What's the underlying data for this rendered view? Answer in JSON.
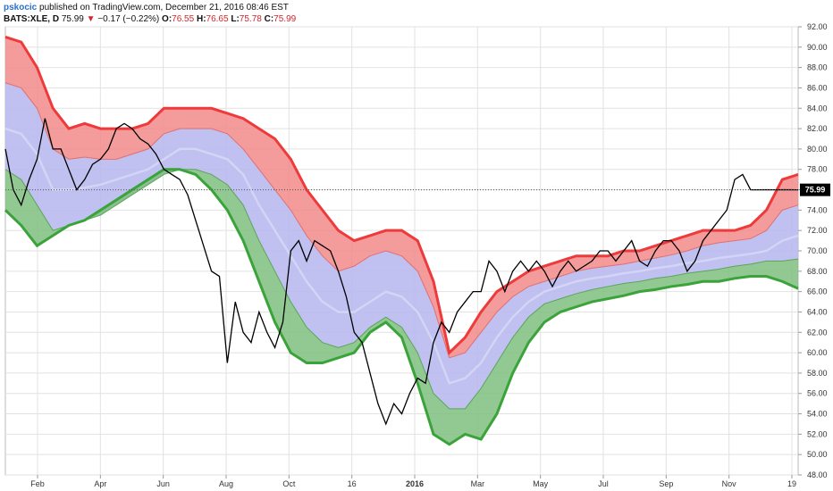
{
  "header": {
    "user": "pskocic",
    "published": "published on TradingView.com, December 21, 2016 08:46 EST",
    "line2_symbol": "BATS:XLE, D",
    "line2_price": "75.99",
    "line2_change": "−0.17 (−0.22%)",
    "o_label": "O:",
    "o_value": "76.55",
    "h_label": "H:",
    "h_value": "76.65",
    "l_label": "L:",
    "l_value": "75.78",
    "c_label": "C:",
    "c_value": "75.99"
  },
  "colors": {
    "price": "#000000",
    "upper_band": "#ee3a3a",
    "upper_fill": "#f28a8a",
    "middle_fill": "#b9b9f0",
    "lower_fill": "#7fbf7f",
    "lower_band": "#3aa33a",
    "last_price_bg": "#000000"
  },
  "chart_data": {
    "type": "line",
    "title": "",
    "ylim": [
      48,
      92
    ],
    "y_ticks": [
      "48.00",
      "50.00",
      "52.00",
      "54.00",
      "56.00",
      "58.00",
      "60.00",
      "62.00",
      "64.00",
      "66.00",
      "68.00",
      "70.00",
      "72.00",
      "74.00",
      "76.00",
      "78.00",
      "80.00",
      "82.00",
      "84.00",
      "86.00",
      "88.00",
      "90.00",
      "92.00"
    ],
    "x_ticks": [
      {
        "label": "Feb",
        "bold": false
      },
      {
        "label": "Apr",
        "bold": false
      },
      {
        "label": "Jun",
        "bold": false
      },
      {
        "label": "Aug",
        "bold": false
      },
      {
        "label": "Oct",
        "bold": false
      },
      {
        "label": "16",
        "bold": false
      },
      {
        "label": "2016",
        "bold": true
      },
      {
        "label": "Mar",
        "bold": false
      },
      {
        "label": "May",
        "bold": false
      },
      {
        "label": "Jul",
        "bold": false
      },
      {
        "label": "Sep",
        "bold": false
      },
      {
        "label": "Nov",
        "bold": false
      },
      {
        "label": "19",
        "bold": false
      }
    ],
    "x_index_range": [
      0,
      100
    ],
    "last_price_label": "75.99",
    "last_price": 75.99,
    "series": [
      {
        "key": "upper",
        "x": [
          0,
          2,
          4,
          6,
          8,
          10,
          12,
          14,
          16,
          18,
          20,
          22,
          24,
          26,
          28,
          30,
          32,
          34,
          36,
          38,
          40,
          42,
          44,
          46,
          48,
          50,
          52,
          54,
          56,
          58,
          60,
          62,
          64,
          66,
          68,
          70,
          72,
          74,
          76,
          78,
          80,
          82,
          84,
          86,
          88,
          90,
          92,
          94,
          96,
          98,
          100
        ],
        "values": [
          91,
          90.5,
          88,
          84,
          82,
          82.5,
          82,
          82,
          82,
          82.5,
          84,
          84,
          84,
          84,
          83.5,
          83,
          82,
          81,
          79,
          76,
          74,
          72,
          71,
          71.5,
          72,
          72,
          71,
          67,
          60,
          61.5,
          64,
          66,
          67,
          68,
          68.5,
          69,
          69.5,
          69.5,
          69.5,
          70,
          70,
          70.5,
          71,
          71.5,
          72,
          72,
          72,
          72.5,
          74,
          77,
          77.5
        ]
      },
      {
        "key": "upper_mid",
        "x": [
          0,
          2,
          4,
          6,
          8,
          10,
          12,
          14,
          16,
          18,
          20,
          22,
          24,
          26,
          28,
          30,
          32,
          34,
          36,
          38,
          40,
          42,
          44,
          46,
          48,
          50,
          52,
          54,
          56,
          58,
          60,
          62,
          64,
          66,
          68,
          70,
          72,
          74,
          76,
          78,
          80,
          82,
          84,
          86,
          88,
          90,
          92,
          94,
          96,
          98,
          100
        ],
        "values": [
          86.5,
          86,
          84,
          80,
          79,
          79.2,
          79,
          79,
          79.5,
          80,
          81.5,
          82,
          82,
          82,
          81.5,
          80,
          78,
          76,
          74,
          71.5,
          69.5,
          68,
          68.5,
          69.5,
          70,
          69.5,
          68,
          64.5,
          59.5,
          60,
          62,
          64,
          65.5,
          66.5,
          67,
          67.5,
          68,
          68.3,
          68.5,
          68.7,
          69,
          69.3,
          69.6,
          70,
          70.5,
          70.8,
          71,
          71.2,
          72,
          74,
          74.5
        ]
      },
      {
        "key": "middle",
        "x": [
          0,
          2,
          4,
          6,
          8,
          10,
          12,
          14,
          16,
          18,
          20,
          22,
          24,
          26,
          28,
          30,
          32,
          34,
          36,
          38,
          40,
          42,
          44,
          46,
          48,
          50,
          52,
          54,
          56,
          58,
          60,
          62,
          64,
          66,
          68,
          70,
          72,
          74,
          76,
          78,
          80,
          82,
          84,
          86,
          88,
          90,
          92,
          94,
          96,
          98,
          100
        ],
        "values": [
          82,
          81.5,
          79.5,
          76,
          76,
          76.2,
          76.5,
          77,
          77.5,
          78,
          79,
          80,
          80,
          79.5,
          79,
          77.5,
          74.5,
          72,
          69.5,
          67,
          65,
          64,
          64,
          65,
          66,
          65.5,
          64,
          61,
          57,
          57.5,
          59,
          61.5,
          63.5,
          65,
          66,
          66.5,
          67,
          67.3,
          67.5,
          67.8,
          68,
          68.3,
          68.5,
          68.8,
          69,
          69.3,
          69.5,
          69.7,
          70,
          71,
          71.5
        ]
      },
      {
        "key": "lower_mid",
        "x": [
          0,
          2,
          4,
          6,
          8,
          10,
          12,
          14,
          16,
          18,
          20,
          22,
          24,
          26,
          28,
          30,
          32,
          34,
          36,
          38,
          40,
          42,
          44,
          46,
          48,
          50,
          52,
          54,
          56,
          58,
          60,
          62,
          64,
          66,
          68,
          70,
          72,
          74,
          76,
          78,
          80,
          82,
          84,
          86,
          88,
          90,
          92,
          94,
          96,
          98,
          100
        ],
        "values": [
          78,
          77,
          74.5,
          72,
          72.5,
          73,
          73.5,
          74.5,
          75.5,
          76.5,
          77.5,
          78,
          78,
          77.5,
          76.5,
          74.5,
          71,
          68,
          65,
          62.5,
          61,
          60.5,
          61,
          62.5,
          63.5,
          62.5,
          60,
          56,
          54.5,
          54.5,
          56.5,
          59,
          61.5,
          63.5,
          64.8,
          65.3,
          65.8,
          66.2,
          66.5,
          66.8,
          67,
          67.3,
          67.5,
          67.8,
          68,
          68.2,
          68.5,
          68.7,
          69,
          69,
          69.2
        ]
      },
      {
        "key": "lower",
        "x": [
          0,
          2,
          4,
          6,
          8,
          10,
          12,
          14,
          16,
          18,
          20,
          22,
          24,
          26,
          28,
          30,
          32,
          34,
          36,
          38,
          40,
          42,
          44,
          46,
          48,
          50,
          52,
          54,
          56,
          58,
          60,
          62,
          64,
          66,
          68,
          70,
          72,
          74,
          76,
          78,
          80,
          82,
          84,
          86,
          88,
          90,
          92,
          94,
          96,
          98,
          100
        ],
        "values": [
          74,
          72.5,
          70.5,
          71.5,
          72.5,
          73,
          74,
          75,
          76,
          77,
          78,
          78,
          77.5,
          76,
          74,
          71,
          67,
          63,
          60,
          59,
          59,
          59.5,
          60,
          62,
          63,
          61.5,
          57,
          52,
          51,
          52,
          51.5,
          54,
          58,
          61,
          63,
          64,
          64.5,
          65,
          65.3,
          65.6,
          66,
          66.2,
          66.5,
          66.7,
          67,
          67,
          67.3,
          67.5,
          67.5,
          67,
          66.3
        ]
      },
      {
        "key": "price",
        "x": [
          0,
          1,
          2,
          3,
          4,
          5,
          6,
          7,
          8,
          9,
          10,
          11,
          12,
          13,
          14,
          15,
          16,
          17,
          18,
          19,
          20,
          21,
          22,
          23,
          24,
          25,
          26,
          27,
          28,
          29,
          30,
          31,
          32,
          33,
          34,
          35,
          36,
          37,
          38,
          39,
          40,
          41,
          42,
          43,
          44,
          45,
          46,
          47,
          48,
          49,
          50,
          51,
          52,
          53,
          54,
          55,
          56,
          57,
          58,
          59,
          60,
          61,
          62,
          63,
          64,
          65,
          66,
          67,
          68,
          69,
          70,
          71,
          72,
          73,
          74,
          75,
          76,
          77,
          78,
          79,
          80,
          81,
          82,
          83,
          84,
          85,
          86,
          87,
          88,
          89,
          90,
          91,
          92,
          93,
          94,
          95,
          96,
          97,
          98,
          99,
          100
        ],
        "values": [
          80,
          76,
          74.5,
          77,
          79,
          83,
          80,
          80,
          78,
          76,
          77,
          78.5,
          79,
          80,
          82,
          82.5,
          82,
          81,
          80.5,
          79.5,
          78,
          77.5,
          77,
          75.5,
          73,
          70.5,
          68,
          67.5,
          59,
          65,
          62,
          61,
          64,
          62,
          60.5,
          63,
          70,
          71,
          69,
          71,
          70.5,
          70,
          68,
          65.5,
          62,
          61,
          58,
          55,
          53,
          55,
          54,
          56,
          57.5,
          57,
          61,
          63,
          62,
          64,
          65,
          66,
          66,
          69,
          68,
          66,
          68,
          69,
          68,
          69,
          68,
          66.5,
          68,
          69,
          68,
          68.5,
          69,
          70,
          70,
          69,
          70,
          71,
          69,
          68.5,
          70,
          71,
          71,
          70,
          68,
          69,
          71,
          72,
          73,
          74,
          77,
          77.5,
          76,
          75.99,
          76,
          75.99,
          76,
          76,
          75.99
        ]
      }
    ]
  }
}
